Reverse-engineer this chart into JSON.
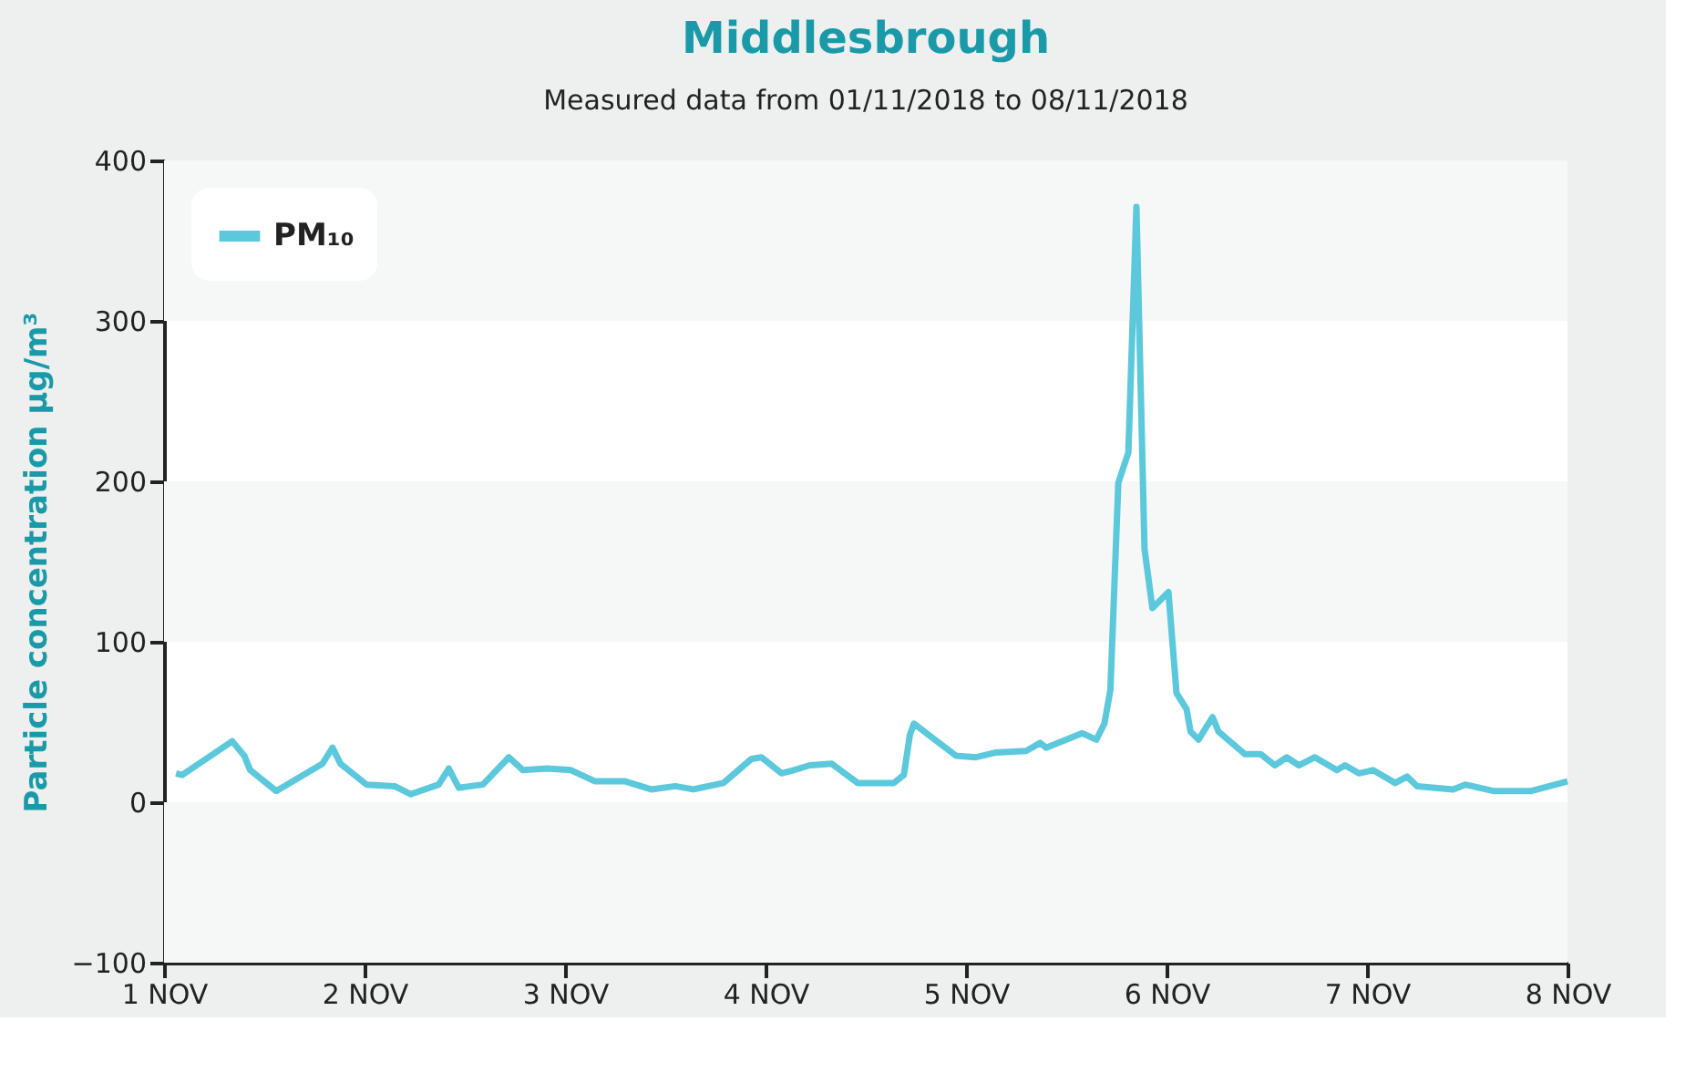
{
  "chart_data": {
    "type": "line",
    "title": "Middlesbrough",
    "subtitle": "Measured data from 01/11/2018 to 08/11/2018",
    "ylabel": "Particle concentration µg/m³",
    "x": [
      "2018-11-01T01:26",
      "2018-11-01T02:10",
      "2018-11-01T08:10",
      "2018-11-01T09:36",
      "2018-11-01T10:19",
      "2018-11-01T13:26",
      "2018-11-01T18:58",
      "2018-11-01T20:10",
      "2018-11-01T21:07",
      "2018-11-02T00:14",
      "2018-11-02T03:36",
      "2018-11-02T05:31",
      "2018-11-02T08:53",
      "2018-11-02T10:05",
      "2018-11-02T11:17",
      "2018-11-02T14:10",
      "2018-11-02T17:17",
      "2018-11-02T18:58",
      "2018-11-02T21:50",
      "2018-11-03T00:43",
      "2018-11-03T03:36",
      "2018-11-03T07:12",
      "2018-11-03T10:19",
      "2018-11-03T13:12",
      "2018-11-03T15:22",
      "2018-11-03T18:58",
      "2018-11-03T22:19",
      "2018-11-03T23:31",
      "2018-11-04T01:55",
      "2018-11-04T03:22",
      "2018-11-04T05:17",
      "2018-11-04T07:55",
      "2018-11-04T11:02",
      "2018-11-04T15:22",
      "2018-11-04T16:34",
      "2018-11-04T17:17",
      "2018-11-04T17:46",
      "2018-11-04T22:48",
      "2018-11-05T01:12",
      "2018-11-05T03:36",
      "2018-11-05T07:12",
      "2018-11-05T08:53",
      "2018-11-05T09:36",
      "2018-11-05T13:55",
      "2018-11-05T15:36",
      "2018-11-05T16:34",
      "2018-11-05T17:17",
      "2018-11-05T18:14",
      "2018-11-05T19:26",
      "2018-11-05T20:24",
      "2018-11-05T21:22",
      "2018-11-05T22:19",
      "2018-11-06T00:14",
      "2018-11-06T01:12",
      "2018-11-06T02:24",
      "2018-11-06T02:53",
      "2018-11-06T03:50",
      "2018-11-06T05:31",
      "2018-11-06T06:14",
      "2018-11-06T09:22",
      "2018-11-06T11:17",
      "2018-11-06T12:58",
      "2018-11-06T14:24",
      "2018-11-06T15:50",
      "2018-11-06T17:46",
      "2018-11-06T20:24",
      "2018-11-06T21:22",
      "2018-11-06T23:02",
      "2018-11-07T00:43",
      "2018-11-07T03:22",
      "2018-11-07T04:48",
      "2018-11-07T06:00",
      "2018-11-07T10:19",
      "2018-11-07T11:46",
      "2018-11-07T15:07",
      "2018-11-07T19:41",
      "2018-11-08T00:00"
    ],
    "series": [
      {
        "name": "PM₁₀",
        "color": "#5bc8dc",
        "values": [
          18,
          17,
          38,
          29,
          20,
          7,
          24,
          34,
          24,
          11,
          10,
          5,
          11,
          21,
          9,
          11,
          28,
          20,
          21,
          20,
          13,
          13,
          8,
          10,
          8,
          12,
          27,
          28,
          18,
          20,
          23,
          24,
          12,
          12,
          17,
          42,
          49,
          29,
          28,
          31,
          32,
          37,
          34,
          43,
          39,
          49,
          70,
          199,
          218,
          371,
          158,
          121,
          131,
          68,
          58,
          44,
          39,
          53,
          44,
          30,
          30,
          23,
          28,
          23,
          28,
          20,
          23,
          18,
          20,
          12,
          16,
          10,
          8,
          11,
          7,
          7,
          13
        ]
      }
    ],
    "xlim": [
      "2018-11-01T00:00",
      "2018-11-08T00:00"
    ],
    "xticks": [
      {
        "value": "2018-11-01T00:00",
        "label": "1 NOV"
      },
      {
        "value": "2018-11-02T00:00",
        "label": "2 NOV"
      },
      {
        "value": "2018-11-03T00:00",
        "label": "3 NOV"
      },
      {
        "value": "2018-11-04T00:00",
        "label": "4 NOV"
      },
      {
        "value": "2018-11-05T00:00",
        "label": "5 NOV"
      },
      {
        "value": "2018-11-06T00:00",
        "label": "6 NOV"
      },
      {
        "value": "2018-11-07T00:00",
        "label": "7 NOV"
      },
      {
        "value": "2018-11-08T00:00",
        "label": "8 NOV"
      }
    ],
    "ylim": [
      -100,
      400
    ],
    "yticks": [
      -100,
      0,
      100,
      200,
      300,
      400
    ],
    "legend": "top left",
    "marker": "none",
    "line_style": "solid"
  }
}
